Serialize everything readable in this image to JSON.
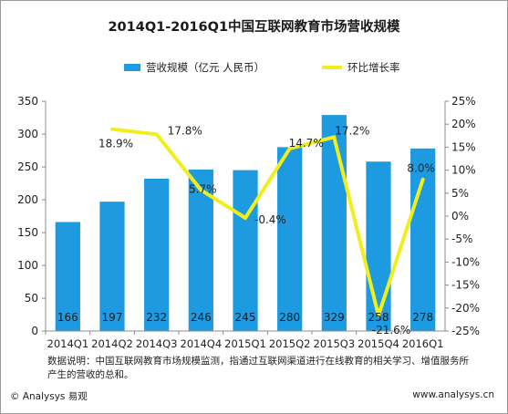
{
  "chart_data": {
    "type": "bar",
    "title": "2014Q1-2016Q1中国互联网教育市场营收规模",
    "categories": [
      "2014Q1",
      "2014Q2",
      "2014Q3",
      "2014Q4",
      "2015Q1",
      "2015Q2",
      "2015Q3",
      "2015Q4",
      "2016Q1"
    ],
    "series": [
      {
        "name": "营收规模（亿元 人民币）",
        "kind": "bar",
        "axis": "left",
        "color": "#1e9ae0",
        "values": [
          166,
          197,
          232,
          246,
          245,
          280,
          329,
          258,
          278
        ],
        "labels": [
          "166",
          "197",
          "232",
          "246",
          "245",
          "280",
          "329",
          "258",
          "278"
        ]
      },
      {
        "name": "环比增长率",
        "kind": "line",
        "axis": "right",
        "color": "#f2ee1c",
        "values": [
          null,
          18.9,
          17.8,
          5.7,
          -0.4,
          14.7,
          17.2,
          -21.6,
          8.0
        ],
        "labels": [
          "",
          "18.9%",
          "17.8%",
          "5.7%",
          "-0.4%",
          "14.7%",
          "17.2%",
          "-21.6%",
          "8.0%"
        ]
      }
    ],
    "y_left": {
      "min": 0,
      "max": 350,
      "ticks": [
        "0",
        "50",
        "100",
        "150",
        "200",
        "250",
        "300",
        "350"
      ]
    },
    "y_right": {
      "min": -25,
      "max": 25,
      "ticks": [
        "-25%",
        "-20%",
        "-15%",
        "-10%",
        "-5%",
        "0%",
        "5%",
        "10%",
        "15%",
        "20%",
        "25%"
      ]
    },
    "legend_position": "top",
    "grid": false
  },
  "note": "数据说明：中国互联网教育市场规模监测，指通过互联网渠道进行在线教育的相关学习、增值服务所产生的营收的总和。",
  "footer": {
    "copyright": "© Analysys 易观",
    "url": "www.analysys.cn"
  }
}
